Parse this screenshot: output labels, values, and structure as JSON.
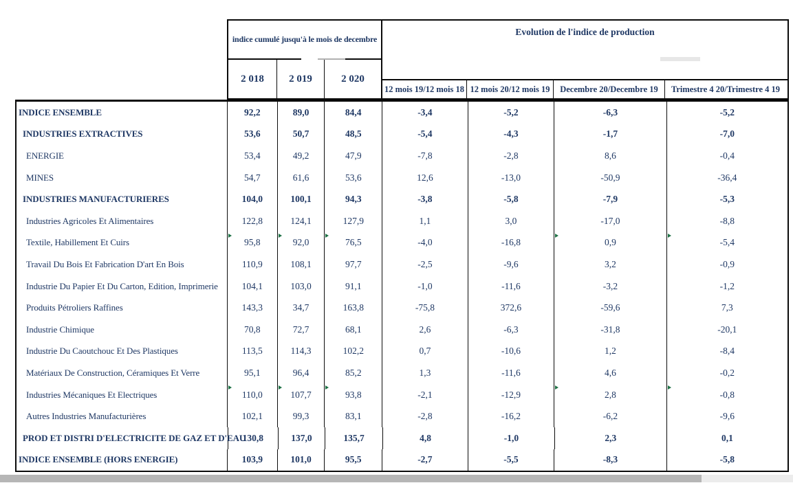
{
  "colors": {
    "text_navy": "#1f3864",
    "border_black": "#0a0a0a",
    "marker_green": "#1e7145",
    "scrollbar_thumb": "#b6b6b6",
    "scrollbar_track": "#ececec"
  },
  "header": {
    "cumulative_group_title": "indice cumulé jusqu'à le mois de decembre",
    "evolution_group_title": "Evolution de l'indice de production",
    "years": [
      "2 018",
      "2 019",
      "2 020"
    ],
    "evolution_columns": [
      "12 mois 19/12 mois 18",
      "12 mois 20/12 mois 19",
      "Decembre 20/Decembre 19",
      "Trimestre 4 20/Trimestre 4 19"
    ]
  },
  "table": {
    "rows": [
      {
        "label": "INDICE ENSEMBLE",
        "values": [
          "92,2",
          "89,0",
          "84,4",
          "-3,4",
          "-5,2",
          "-6,3",
          "-5,2"
        ],
        "bold": true,
        "indent": 0,
        "markers": []
      },
      {
        "label": "INDUSTRIES EXTRACTIVES",
        "values": [
          "53,6",
          "50,7",
          "48,5",
          "-5,4",
          "-4,3",
          "-1,7",
          "-7,0"
        ],
        "bold": true,
        "indent": 1,
        "markers": []
      },
      {
        "label": "ENERGIE",
        "values": [
          "53,4",
          "49,2",
          "47,9",
          "-7,8",
          "-2,8",
          "8,6",
          "-0,4"
        ],
        "bold": false,
        "indent": 2,
        "markers": []
      },
      {
        "label": "MINES",
        "values": [
          "54,7",
          "61,6",
          "53,6",
          "12,6",
          "-13,0",
          "-50,9",
          "-36,4"
        ],
        "bold": false,
        "indent": 2,
        "markers": []
      },
      {
        "label": "INDUSTRIES MANUFACTURIERES",
        "values": [
          "104,0",
          "100,1",
          "94,3",
          "-3,8",
          "-5,8",
          "-7,9",
          "-5,3"
        ],
        "bold": true,
        "indent": 1,
        "markers": []
      },
      {
        "label": "Industries Agricoles Et Alimentaires",
        "values": [
          "122,8",
          "124,1",
          "127,9",
          "1,1",
          "3,0",
          "-17,0",
          "-8,8"
        ],
        "bold": false,
        "indent": 2,
        "markers": []
      },
      {
        "label": "Textile, Habillement Et Cuirs",
        "values": [
          "95,8",
          "92,0",
          "76,5",
          "-4,0",
          "-16,8",
          "0,9",
          "-5,4"
        ],
        "bold": false,
        "indent": 2,
        "markers": [
          0,
          1,
          2,
          5,
          6
        ]
      },
      {
        "label": "Travail Du Bois Et Fabrication D'art En Bois",
        "values": [
          "110,9",
          "108,1",
          "97,7",
          "-2,5",
          "-9,6",
          "3,2",
          "-0,9"
        ],
        "bold": false,
        "indent": 2,
        "markers": []
      },
      {
        "label": "Industrie Du Papier Et Du Carton, Edition, Imprimerie",
        "values": [
          "104,1",
          "103,0",
          "91,1",
          "-1,0",
          "-11,6",
          "-3,2",
          "-1,2"
        ],
        "bold": false,
        "indent": 2,
        "markers": []
      },
      {
        "label": "Produits Pétroliers Raffines",
        "values": [
          "143,3",
          "34,7",
          "163,8",
          "-75,8",
          "372,6",
          "-59,6",
          "7,3"
        ],
        "bold": false,
        "indent": 2,
        "markers": []
      },
      {
        "label": "Industrie Chimique",
        "values": [
          "70,8",
          "72,7",
          "68,1",
          "2,6",
          "-6,3",
          "-31,8",
          "-20,1"
        ],
        "bold": false,
        "indent": 2,
        "markers": []
      },
      {
        "label": "Industrie Du Caoutchouc Et Des Plastiques",
        "values": [
          "113,5",
          "114,3",
          "102,2",
          "0,7",
          "-10,6",
          "1,2",
          "-8,4"
        ],
        "bold": false,
        "indent": 2,
        "markers": []
      },
      {
        "label": "Matériaux De Construction, Céramiques Et Verre",
        "values": [
          "95,1",
          "96,4",
          "85,2",
          "1,3",
          "-11,6",
          "4,6",
          "-0,2"
        ],
        "bold": false,
        "indent": 2,
        "markers": []
      },
      {
        "label": "Industries Mécaniques Et Electriques",
        "values": [
          "110,0",
          "107,7",
          "93,8",
          "-2,1",
          "-12,9",
          "2,8",
          "-0,8"
        ],
        "bold": false,
        "indent": 2,
        "markers": [
          0,
          1,
          2,
          5,
          6
        ]
      },
      {
        "label": "Autres Industries Manufacturières",
        "values": [
          "102,1",
          "99,3",
          "83,1",
          "-2,8",
          "-16,2",
          "-6,2",
          "-9,6"
        ],
        "bold": false,
        "indent": 2,
        "markers": []
      },
      {
        "label": "PROD ET DISTRI D'ELECTRICITE DE GAZ ET D'EAU",
        "values": [
          "130,8",
          "137,0",
          "135,7",
          "4,8",
          "-1,0",
          "2,3",
          "0,1"
        ],
        "bold": true,
        "indent": 1,
        "markers": []
      },
      {
        "label": "INDICE ENSEMBLE (HORS ENERGIE)",
        "values": [
          "103,9",
          "101,0",
          "95,5",
          "-2,7",
          "-5,5",
          "-8,3",
          "-5,8"
        ],
        "bold": true,
        "indent": 0,
        "markers": []
      }
    ]
  }
}
